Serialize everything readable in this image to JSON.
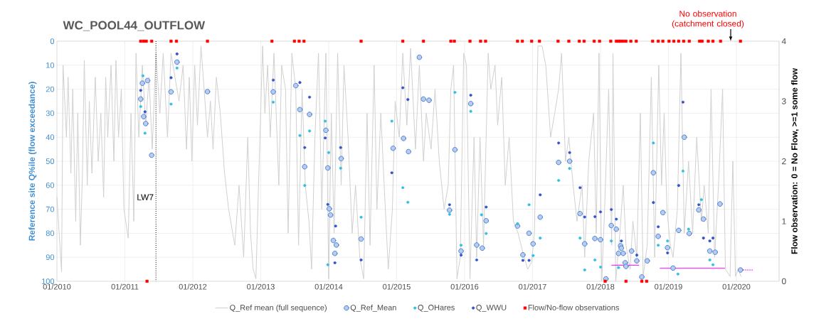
{
  "chart_data": {
    "type": "line",
    "title": "WC_POOL44_OUTFLOW",
    "ylabel": "Reference site Q%ile  (flow exceedance)",
    "y2label": "Flow observation: 0 = No Flow, >=1  some flow",
    "xlim": [
      "2010-01-01",
      "2020-08-18"
    ],
    "xticks": [
      {
        "value": "2010-01",
        "label": "01/2010"
      },
      {
        "value": "2011-01",
        "label": "01/2011"
      },
      {
        "value": "2012-01",
        "label": "01/2012"
      },
      {
        "value": "2013-01",
        "label": "01/2013"
      },
      {
        "value": "2014-01",
        "label": "01/2014"
      },
      {
        "value": "2015-01",
        "label": "01/2015"
      },
      {
        "value": "2016-01",
        "label": "01/2016"
      },
      {
        "value": "2017-01",
        "label": "01/2017"
      },
      {
        "value": "2018-01",
        "label": "01/2018"
      },
      {
        "value": "2019-01",
        "label": "01/2019"
      },
      {
        "value": "2020-01",
        "label": "01/2020"
      }
    ],
    "ylim": [
      100,
      0
    ],
    "yticks": [
      0,
      10,
      20,
      30,
      40,
      50,
      60,
      70,
      80,
      90,
      100
    ],
    "y2lim": [
      0,
      4
    ],
    "y2ticks": [
      0,
      1,
      2,
      3,
      4
    ],
    "grid": true,
    "legend": "bottom",
    "ref_lines": [
      {
        "axis": "x",
        "value": "2011-06-17",
        "label": "LW7",
        "color": "#000000",
        "line_style": "dotted"
      }
    ],
    "annotations": [
      "No observation (catchment closed)"
    ],
    "series": [
      {
        "name": "Q_Ref mean (full sequence)",
        "color": "#d0d0d0",
        "marker": "none",
        "x": [
          "2010-01-01",
          "2010-01-26",
          "2010-02-03",
          "2010-02-21",
          "2010-03-02",
          "2010-03-17",
          "2010-03-27",
          "2010-04-12",
          "2010-04-23",
          "2010-05-07",
          "2010-05-18",
          "2010-05-28",
          "2010-06-13",
          "2010-06-24",
          "2010-07-08",
          "2010-07-26",
          "2010-08-11",
          "2010-08-25",
          "2010-09-09",
          "2010-09-20",
          "2010-10-01",
          "2010-10-19",
          "2010-11-03",
          "2010-11-14",
          "2010-11-28",
          "2010-12-13",
          "2010-12-27",
          "2011-01-19",
          "2011-02-03",
          "2011-02-18",
          "2011-03-02",
          "2011-03-17",
          "2011-04-05",
          "2011-04-23",
          "2011-05-11",
          "2011-05-28",
          "2011-06-17",
          "2011-07-08",
          "2011-07-26",
          "2011-08-18",
          "2011-09-06",
          "2011-09-27",
          "2011-10-19",
          "2011-11-10",
          "2011-11-28",
          "2011-12-13",
          "2011-12-27",
          "2012-01-11",
          "2012-01-26",
          "2012-02-14",
          "2012-03-02",
          "2012-03-20",
          "2012-04-05",
          "2012-04-19",
          "2012-05-07",
          "2012-05-28",
          "2012-06-20",
          "2012-07-12",
          "2012-08-14",
          "2012-09-06",
          "2012-10-01",
          "2012-10-23",
          "2012-11-07",
          "2012-11-21",
          "2012-12-06",
          "2012-12-20",
          "2013-01-11",
          "2013-01-23",
          "2013-02-07",
          "2013-02-21",
          "2013-03-13",
          "2013-04-08",
          "2013-04-23",
          "2013-05-14",
          "2013-05-28",
          "2013-06-17",
          "2013-07-08",
          "2013-07-23",
          "2013-08-11",
          "2013-08-28",
          "2013-09-17",
          "2013-10-01",
          "2013-10-19",
          "2013-11-07",
          "2013-11-25",
          "2013-12-17",
          "2014-01-01",
          "2014-01-15",
          "2014-01-30",
          "2014-02-18",
          "2014-03-09",
          "2014-03-24",
          "2014-04-15",
          "2014-05-07",
          "2014-05-25",
          "2014-06-17",
          "2014-07-08",
          "2014-07-26",
          "2014-08-11",
          "2014-09-02",
          "2014-09-17",
          "2014-10-08",
          "2014-10-26",
          "2014-11-17",
          "2014-12-09",
          "2014-12-24",
          "2015-01-15",
          "2015-02-03",
          "2015-02-25",
          "2015-03-17",
          "2015-04-12",
          "2015-05-03",
          "2015-05-25",
          "2015-06-09",
          "2015-07-05",
          "2015-07-26",
          "2015-08-18",
          "2015-09-13",
          "2015-10-05",
          "2015-10-19",
          "2015-11-03",
          "2015-11-21",
          "2015-12-09",
          "2015-12-27",
          "2016-01-11",
          "2016-01-30",
          "2016-02-21",
          "2016-03-06",
          "2016-03-24",
          "2016-04-12",
          "2016-05-07",
          "2016-05-21",
          "2016-06-13",
          "2016-06-27",
          "2016-07-19",
          "2016-08-07",
          "2016-08-28",
          "2016-09-20",
          "2016-10-15",
          "2016-11-10",
          "2016-12-06",
          "2016-12-27",
          "2017-01-11",
          "2017-01-30",
          "2017-02-21",
          "2017-03-13",
          "2017-04-08",
          "2017-04-30",
          "2017-05-21",
          "2017-06-06",
          "2017-06-27",
          "2017-07-15",
          "2017-08-07",
          "2017-08-28",
          "2017-09-24",
          "2017-10-08",
          "2017-10-30",
          "2017-11-25",
          "2017-12-09",
          "2017-12-24",
          "2018-01-08",
          "2018-01-23",
          "2018-02-14",
          "2018-03-02",
          "2018-03-09",
          "2018-03-24",
          "2018-04-15",
          "2018-05-03",
          "2018-05-18",
          "2018-06-09",
          "2018-06-24",
          "2018-07-15",
          "2018-08-03",
          "2018-08-18",
          "2018-09-09",
          "2018-10-01",
          "2018-10-19",
          "2018-11-10",
          "2018-11-25",
          "2018-12-09",
          "2018-12-24",
          "2019-01-11",
          "2019-01-26",
          "2019-02-18",
          "2019-03-09",
          "2019-03-27",
          "2019-04-19",
          "2019-05-11",
          "2019-06-02",
          "2019-06-27",
          "2019-07-12",
          "2019-08-03",
          "2019-08-18",
          "2019-09-06",
          "2019-09-27",
          "2019-10-19",
          "2019-11-03",
          "2019-11-28",
          "2019-12-13",
          "2019-12-27",
          "2020-01-11",
          "2020-01-26"
        ],
        "values": [
          65,
          96,
          10,
          40,
          15,
          55,
          20,
          75,
          30,
          85,
          55,
          8,
          60,
          25,
          55,
          15,
          50,
          30,
          65,
          15,
          40,
          10,
          50,
          8,
          40,
          20,
          70,
          82,
          30,
          75,
          5,
          40,
          10,
          35,
          15,
          45,
          5,
          30,
          5,
          40,
          5,
          15,
          25,
          10,
          45,
          15,
          50,
          10,
          35,
          2,
          20,
          40,
          25,
          45,
          15,
          30,
          55,
          70,
          85,
          60,
          90,
          40,
          80,
          95,
          99,
          60,
          2,
          30,
          10,
          40,
          5,
          60,
          10,
          20,
          80,
          5,
          20,
          85,
          20,
          60,
          75,
          95,
          40,
          5,
          70,
          5,
          99,
          30,
          80,
          5,
          60,
          10,
          40,
          80,
          60,
          90,
          99,
          30,
          85,
          10,
          70,
          30,
          60,
          95,
          70,
          25,
          40,
          5,
          35,
          3,
          45,
          10,
          50,
          30,
          45,
          20,
          50,
          70,
          60,
          20,
          10,
          99,
          90,
          5,
          10,
          99,
          40,
          90,
          40,
          85,
          5,
          20,
          10,
          35,
          15,
          60,
          40,
          75,
          80,
          88,
          95,
          92,
          80,
          2,
          2,
          10,
          40,
          30,
          20,
          5,
          50,
          40,
          60,
          75,
          60,
          90,
          50,
          30,
          80,
          5,
          100,
          70,
          20,
          85,
          5,
          100,
          80,
          60,
          85,
          95,
          75,
          90,
          30,
          98,
          85,
          15,
          90,
          10,
          60,
          30,
          70,
          85,
          90,
          70,
          5,
          80,
          50,
          80,
          40,
          75,
          60,
          80,
          20,
          90,
          60,
          20,
          95,
          98,
          50,
          98,
          95,
          98
        ]
      },
      {
        "name": "Q_Ref_Mean",
        "type": "scatter",
        "color": "#4a7fd4",
        "marker": "circle",
        "x": [
          "2011-03-27",
          "2011-04-05",
          "2011-04-12",
          "2011-04-23",
          "2011-05-03",
          "2011-05-25",
          "2011-09-06",
          "2011-10-08",
          "2012-03-20",
          "2013-03-09",
          "2013-07-08",
          "2013-07-30",
          "2013-08-25",
          "2013-09-20",
          "2013-12-17",
          "2013-12-27",
          "2014-01-04",
          "2014-01-11",
          "2014-01-26",
          "2014-02-03",
          "2014-02-11",
          "2014-03-09",
          "2014-06-24",
          "2014-12-13",
          "2015-02-07",
          "2015-03-06",
          "2015-05-03",
          "2015-05-25",
          "2015-06-24",
          "2015-10-12",
          "2015-11-10",
          "2015-12-13",
          "2016-02-03",
          "2016-03-06",
          "2016-04-05",
          "2016-04-26",
          "2016-10-12",
          "2016-11-10",
          "2016-12-13",
          "2017-01-04",
          "2017-02-11",
          "2017-05-21",
          "2017-07-19",
          "2017-09-13",
          "2017-10-08",
          "2017-12-02",
          "2018-01-01",
          "2018-01-30",
          "2018-02-28",
          "2018-03-27",
          "2018-04-08",
          "2018-04-19",
          "2018-04-23",
          "2018-05-03",
          "2018-05-14",
          "2018-05-18",
          "2018-06-17",
          "2018-07-15",
          "2018-08-11",
          "2018-09-09",
          "2018-10-12",
          "2018-11-07",
          "2018-12-02",
          "2018-12-27",
          "2019-01-26",
          "2019-02-25",
          "2019-03-27",
          "2019-04-23",
          "2019-06-13",
          "2019-07-08",
          "2019-08-11",
          "2019-09-09",
          "2019-10-05",
          "2020-01-23"
        ],
        "values": [
          24.1,
          17.5,
          31.4,
          34.3,
          16.4,
          47.5,
          21.1,
          8.7,
          21,
          21.1,
          18.5,
          28.5,
          52.3,
          30.5,
          37.1,
          52.8,
          69.8,
          72.4,
          83.0,
          88.4,
          84.9,
          48.9,
          82.4,
          44.6,
          40.5,
          46,
          6.7,
          24.1,
          24.6,
          70.4,
          45.2,
          87.4,
          26,
          84.9,
          86.2,
          74.8,
          77,
          89,
          80,
          84.4,
          73.3,
          50.5,
          50,
          71.8,
          84.4,
          82.2,
          82.7,
          99,
          76.8,
          78.3,
          88.4,
          85.2,
          86.2,
          88.4,
          92.3,
          93.8,
          87.4,
          91.5,
          98.2,
          91.5,
          54.8,
          81.3,
          71.4,
          86,
          94.5,
          78.8,
          40,
          80.1,
          70.3,
          74.1,
          87.4,
          87.9,
          67.8,
          95.3
        ]
      },
      {
        "name": "Q_OHares",
        "type": "scatter",
        "color": "#33c0e0",
        "marker": "circle",
        "x": [
          "2011-03-27",
          "2011-04-08",
          "2011-04-19",
          "2011-09-06",
          "2011-10-08",
          "2013-03-09",
          "2013-07-30",
          "2013-08-25",
          "2013-09-20",
          "2013-12-13",
          "2013-12-27",
          "2014-01-01",
          "2014-03-06",
          "2014-06-24",
          "2014-12-06",
          "2015-02-03",
          "2015-03-02",
          "2015-10-12",
          "2015-11-10",
          "2015-12-13",
          "2016-02-03",
          "2016-04-01",
          "2016-04-26",
          "2016-10-12",
          "2016-12-13",
          "2017-01-04",
          "2017-02-11",
          "2017-05-21",
          "2017-07-19",
          "2017-09-13",
          "2017-10-08",
          "2017-12-02",
          "2018-01-01",
          "2018-02-28",
          "2018-04-08",
          "2018-10-12",
          "2018-11-07",
          "2018-12-27",
          "2019-02-21",
          "2019-03-20",
          "2019-04-19",
          "2019-06-27",
          "2019-08-11",
          "2019-08-28"
        ],
        "values": [
          27.2,
          14.4,
          38.3,
          26.2,
          11.2,
          25.4,
          39.3,
          60.1,
          37.4,
          33.3,
          93.1,
          46.4,
          52.9,
          73.3,
          33.3,
          61,
          67.1,
          72.1,
          21.3,
          85,
          29.2,
          72.3,
          80.1,
          76,
          68.1,
          89.3,
          82,
          58,
          53,
          82,
          95.3,
          91.1,
          94.1,
          83.2,
          94.3,
          42.4,
          85,
          83.2,
          97,
          54.1,
          78.3,
          66,
          91.1,
          93.1
        ]
      },
      {
        "name": "Q_WWU",
        "type": "scatter",
        "color": "#3355cc",
        "marker": "circle",
        "x": [
          "2011-03-27",
          "2011-04-19",
          "2011-09-06",
          "2011-10-08",
          "2013-03-09",
          "2013-07-30",
          "2013-08-25",
          "2013-09-20",
          "2013-12-13",
          "2013-12-27",
          "2014-02-03",
          "2014-02-07",
          "2014-03-06",
          "2014-06-24",
          "2014-12-06",
          "2015-02-03",
          "2015-03-02",
          "2015-10-12",
          "2015-12-13",
          "2016-02-03",
          "2016-03-06",
          "2016-04-26",
          "2016-11-10",
          "2016-12-13",
          "2017-02-11",
          "2017-05-21",
          "2017-07-19",
          "2017-09-13",
          "2017-10-08",
          "2017-12-02",
          "2018-01-01",
          "2018-02-28",
          "2018-03-27",
          "2018-04-23",
          "2018-07-15",
          "2018-10-12",
          "2018-11-07",
          "2018-12-27",
          "2019-02-25",
          "2019-03-20",
          "2019-06-13",
          "2019-07-08",
          "2019-08-11",
          "2019-08-28"
        ],
        "values": [
          20.5,
          29.4,
          15.2,
          5.3,
          16.2,
          17.2,
          44.3,
          23.3,
          40.3,
          68,
          92.3,
          77,
          44.3,
          91.1,
          54.8,
          19.4,
          24.3,
          68.1,
          89.1,
          22.5,
          91.1,
          69.1,
          91.3,
          91.3,
          64,
          42.4,
          46.4,
          61,
          73.2,
          73.1,
          71.1,
          70.1,
          74.1,
          83.2,
          89.1,
          67.2,
          77.3,
          88.2,
          60.1,
          25.4,
          68.1,
          82,
          83.2,
          82
        ]
      },
      {
        "name": "Flow/No-flow observations",
        "type": "scatter",
        "color": "#ff0000",
        "marker": "square",
        "axis": "y2",
        "x": [
          "2011-03-27",
          "2011-04-12",
          "2011-04-26",
          "2011-04-30",
          "2011-05-25",
          "2011-09-06",
          "2011-10-05",
          "2012-03-20",
          "2013-03-02",
          "2013-07-01",
          "2013-07-26",
          "2013-08-21",
          "2014-06-24",
          "2015-02-03",
          "2015-05-25",
          "2015-10-19",
          "2015-11-07",
          "2016-01-30",
          "2016-03-27",
          "2016-04-23",
          "2016-10-12",
          "2016-11-07",
          "2016-12-27",
          "2017-02-07",
          "2017-05-18",
          "2017-07-15",
          "2017-09-09",
          "2017-10-05",
          "2017-11-28",
          "2017-12-27",
          "2018-01-26",
          "2018-02-25",
          "2018-03-27",
          "2018-04-08",
          "2018-04-19",
          "2018-05-03",
          "2018-05-18",
          "2018-05-18",
          "2018-06-13",
          "2018-07-12",
          "2018-08-11",
          "2018-09-06",
          "2018-10-08",
          "2018-11-07",
          "2018-12-02",
          "2019-01-04",
          "2019-01-30",
          "2019-02-25",
          "2019-03-24",
          "2019-04-23",
          "2019-06-17",
          "2019-07-01",
          "2019-08-03",
          "2019-08-28",
          "2019-10-08",
          "2020-01-23"
        ],
        "values": [
          4,
          4,
          4,
          0,
          4,
          4,
          4,
          4,
          4,
          4,
          4,
          4,
          4,
          4,
          4,
          4,
          4,
          4,
          4,
          4,
          4,
          4,
          4,
          4,
          4,
          4,
          4,
          4,
          4,
          4,
          0,
          4,
          4,
          4,
          4,
          4,
          4,
          0,
          4,
          4,
          0,
          0,
          4,
          4,
          4,
          4,
          4,
          4,
          4,
          4,
          4,
          4,
          4,
          4,
          4,
          4
        ]
      },
      {
        "color": "#ff00ff",
        "marker": "none",
        "x": [
          "2018-03-02",
          "2018-07-26"
        ],
        "values": [
          93.3,
          93.3
        ]
      },
      {
        "color": "#ff00ff",
        "marker": "none",
        "x": [
          "2018-11-17",
          "2019-10-30"
        ],
        "values": [
          94.6,
          94.6
        ]
      },
      {
        "color": "#ff00ff",
        "marker": "none",
        "line_style": "dotted",
        "x": [
          "2020-02-07",
          "2020-04-01"
        ],
        "values": [
          95.3,
          95.3
        ]
      }
    ]
  }
}
